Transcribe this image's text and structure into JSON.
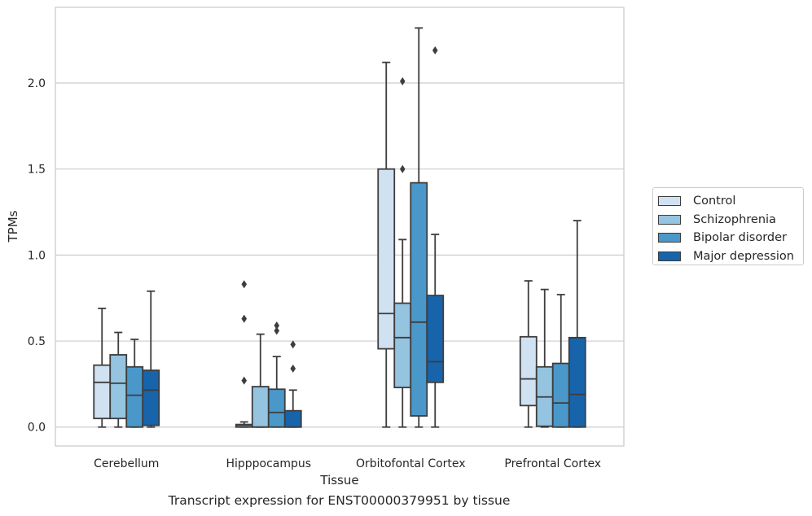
{
  "chart_data": {
    "type": "box",
    "xlabel": "Tissue",
    "ylabel": "TPMs",
    "caption": "Transcript expression for ENST00000379951 by tissue",
    "ylim": [
      -0.11,
      2.44
    ],
    "yticks": [
      "0.0",
      "0.5",
      "1.0",
      "1.5",
      "2.0"
    ],
    "grid": "horizontal",
    "legend_position": "right",
    "categories": [
      "Cerebellum",
      "Hipppocampus",
      "Orbitofontal Cortex",
      "Prefrontal Cortex"
    ],
    "series": [
      {
        "name": "Control",
        "color": "#d0e1f2",
        "boxes": [
          {
            "whislo": 0.0,
            "q1": 0.05,
            "med": 0.26,
            "q3": 0.36,
            "whishi": 0.69,
            "fliers": []
          },
          {
            "whislo": 0.0,
            "q1": 0.0,
            "med": 0.01,
            "q3": 0.015,
            "whishi": 0.03,
            "fliers": [
              0.27,
              0.63,
              0.83
            ]
          },
          {
            "whislo": 0.0,
            "q1": 0.455,
            "med": 0.66,
            "q3": 1.5,
            "whishi": 2.12,
            "fliers": []
          },
          {
            "whislo": 0.0,
            "q1": 0.125,
            "med": 0.28,
            "q3": 0.525,
            "whishi": 0.85,
            "fliers": []
          }
        ]
      },
      {
        "name": "Schizophrenia",
        "color": "#94c4df",
        "boxes": [
          {
            "whislo": 0.0,
            "q1": 0.05,
            "med": 0.255,
            "q3": 0.42,
            "whishi": 0.55,
            "fliers": []
          },
          {
            "whislo": 0.0,
            "q1": 0.0,
            "med": 0.0,
            "q3": 0.235,
            "whishi": 0.54,
            "fliers": []
          },
          {
            "whislo": 0.0,
            "q1": 0.23,
            "med": 0.52,
            "q3": 0.72,
            "whishi": 1.09,
            "fliers": [
              1.5,
              2.01
            ]
          },
          {
            "whislo": 0.0,
            "q1": 0.005,
            "med": 0.175,
            "q3": 0.35,
            "whishi": 0.8,
            "fliers": []
          }
        ]
      },
      {
        "name": "Bipolar disorder",
        "color": "#4a98c9",
        "boxes": [
          {
            "whislo": 0.0,
            "q1": 0.0,
            "med": 0.185,
            "q3": 0.35,
            "whishi": 0.51,
            "fliers": []
          },
          {
            "whislo": 0.0,
            "q1": 0.0,
            "med": 0.085,
            "q3": 0.22,
            "whishi": 0.41,
            "fliers": [
              0.56,
              0.59
            ]
          },
          {
            "whislo": 0.0,
            "q1": 0.065,
            "med": 0.61,
            "q3": 1.42,
            "whishi": 2.32,
            "fliers": []
          },
          {
            "whislo": 0.0,
            "q1": 0.0,
            "med": 0.14,
            "q3": 0.37,
            "whishi": 0.77,
            "fliers": []
          }
        ]
      },
      {
        "name": "Major depression",
        "color": "#1764ab",
        "boxes": [
          {
            "whislo": 0.0,
            "q1": 0.01,
            "med": 0.215,
            "q3": 0.33,
            "whishi": 0.79,
            "fliers": []
          },
          {
            "whislo": 0.0,
            "q1": 0.0,
            "med": 0.0,
            "q3": 0.095,
            "whishi": 0.215,
            "fliers": [
              0.34,
              0.48
            ]
          },
          {
            "whislo": 0.0,
            "q1": 0.26,
            "med": 0.38,
            "q3": 0.765,
            "whishi": 1.12,
            "fliers": [
              2.19
            ]
          },
          {
            "whislo": 0.0,
            "q1": 0.0,
            "med": 0.19,
            "q3": 0.52,
            "whishi": 1.2,
            "fliers": []
          }
        ]
      }
    ]
  }
}
